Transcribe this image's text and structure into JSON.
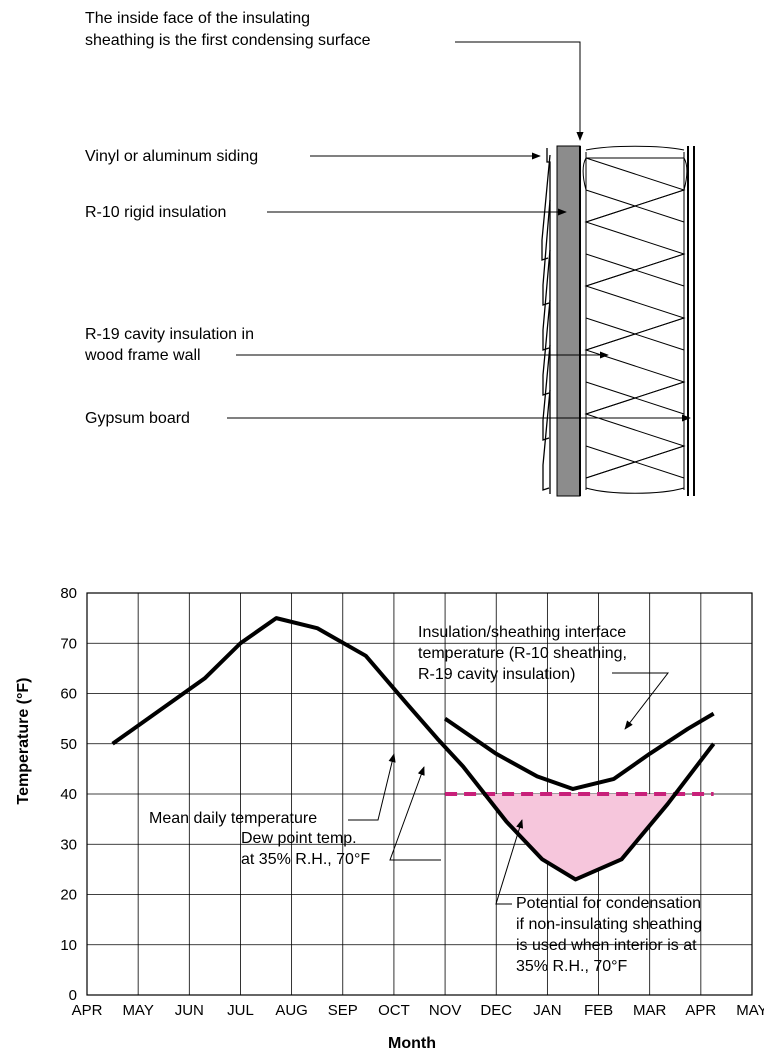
{
  "wall_section": {
    "callout_condensing_line1": "The inside face of the insulating",
    "callout_condensing_line2": "sheathing is the first condensing surface",
    "callout_siding": "Vinyl or aluminum siding",
    "callout_rigid": "R-10 rigid insulation",
    "callout_cavity_line1": "R-19 cavity insulation in",
    "callout_cavity_line2": "wood frame wall",
    "callout_gypsum": "Gypsum board",
    "colors": {
      "sheathing": "#8c8c8c",
      "line": "#000000"
    }
  },
  "chart": {
    "annotation_interface_line1": "Insulation/sheathing interface",
    "annotation_interface_line2": "temperature (R-10 sheathing,",
    "annotation_interface_line3": "R-19 cavity insulation)",
    "annotation_mean": "Mean daily temperature",
    "annotation_dew_line1": "Dew point temp.",
    "annotation_dew_line2": "at 35% R.H., 70°F",
    "annotation_potential_line1": "Potential for condensation",
    "annotation_potential_line2": "if non-insulating sheathing",
    "annotation_potential_line3": "is used when interior is at",
    "annotation_potential_line4": "35% R.H., 70°F",
    "colors": {
      "dew_point": "#c8207a",
      "condensation_fill": "#f6c6dc",
      "curve": "#000000"
    }
  },
  "chart_data": {
    "type": "line",
    "xlabel": "Month",
    "ylabel": "Temperature (°F)",
    "categories": [
      "APR",
      "MAY",
      "JUN",
      "JUL",
      "AUG",
      "SEP",
      "OCT",
      "NOV",
      "DEC",
      "JAN",
      "FEB",
      "MAR",
      "APR",
      "MAY"
    ],
    "ylim": [
      0,
      80
    ],
    "yticks": [
      0,
      10,
      20,
      30,
      40,
      50,
      60,
      70,
      80
    ],
    "grid": true,
    "series": [
      {
        "key": "mean",
        "x": [
          0.5,
          2.3,
          3.0,
          3.7,
          4.5,
          5.45,
          6.25,
          6.85,
          7.35,
          8.2,
          8.9,
          9.55,
          10.45,
          11.35,
          12.25
        ],
        "y": [
          50,
          63,
          70,
          75,
          73,
          67.5,
          58,
          51,
          45.5,
          34.5,
          27,
          23,
          27,
          38,
          50
        ]
      },
      {
        "key": "interface",
        "x": [
          7.0,
          8.0,
          8.8,
          9.5,
          10.3,
          11.0,
          11.75,
          12.25
        ],
        "y": [
          55,
          48,
          43.5,
          41,
          43,
          48,
          53,
          56
        ]
      },
      {
        "key": "dew_point",
        "x": [
          7.0,
          12.25
        ],
        "y": [
          40,
          40
        ]
      }
    ]
  }
}
